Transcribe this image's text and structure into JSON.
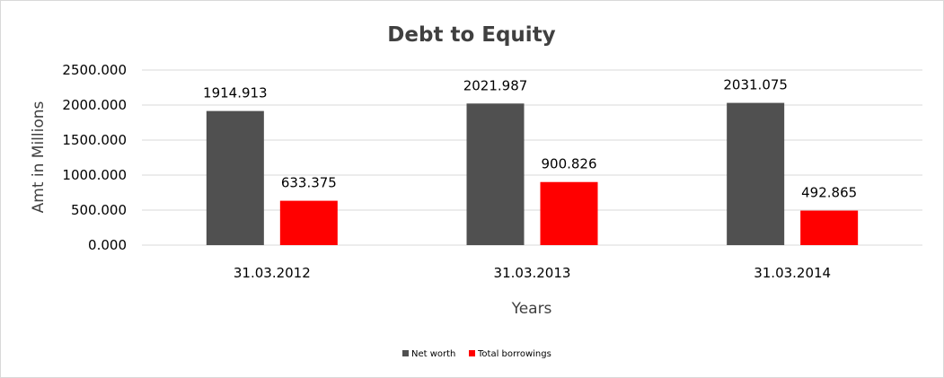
{
  "chart_data": {
    "type": "bar",
    "title": "Debt to Equity",
    "xlabel": "Years",
    "ylabel": "Amt in Millions",
    "categories": [
      "31.03.2012",
      "31.03.2013",
      "31.03.2014"
    ],
    "series": [
      {
        "name": "Net worth",
        "color": "#505050",
        "values": [
          1914.913,
          2021.987,
          2031.075
        ],
        "labels": [
          "1914.913",
          "2021.987",
          "2031.075"
        ]
      },
      {
        "name": "Total borrowings",
        "color": "#ff0000",
        "values": [
          633.375,
          900.826,
          492.865
        ],
        "labels": [
          "633.375",
          "900.826",
          "492.865"
        ]
      }
    ],
    "ylim": [
      0,
      2500
    ],
    "yticks": [
      0,
      500,
      1000,
      1500,
      2000,
      2500
    ],
    "ytick_labels": [
      "0.000",
      "500.000",
      "1000.000",
      "1500.000",
      "2000.000",
      "2500.000"
    ],
    "grid": true,
    "legend_position": "bottom"
  }
}
